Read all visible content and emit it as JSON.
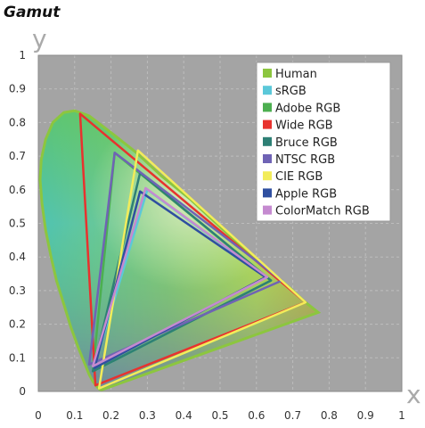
{
  "title": "Gamut",
  "chart_data": {
    "type": "line",
    "title": "Gamut",
    "xlabel": "x",
    "ylabel": "y",
    "xlim": [
      0,
      1
    ],
    "ylim": [
      0,
      1
    ],
    "xticks": [
      "0",
      "0.1",
      "0.2",
      "0.3",
      "0.4",
      "0.5",
      "0.6",
      "0.7",
      "0.8",
      "0.9",
      "1"
    ],
    "yticks": [
      "0",
      "0.1",
      "0.2",
      "0.3",
      "0.4",
      "0.5",
      "0.6",
      "0.7",
      "0.8",
      "0.9",
      "1"
    ],
    "grid": true,
    "legend_position": "top-right",
    "plot_background": "#a4a4a4",
    "locus": {
      "name": "Human",
      "color": "#8cc63f",
      "points": [
        [
          0.175,
          0.005
        ],
        [
          0.172,
          0.005
        ],
        [
          0.168,
          0.007
        ],
        [
          0.16,
          0.016
        ],
        [
          0.15,
          0.03
        ],
        [
          0.14,
          0.05
        ],
        [
          0.125,
          0.09
        ],
        [
          0.11,
          0.13
        ],
        [
          0.09,
          0.19
        ],
        [
          0.07,
          0.26
        ],
        [
          0.05,
          0.33
        ],
        [
          0.035,
          0.4
        ],
        [
          0.02,
          0.48
        ],
        [
          0.01,
          0.56
        ],
        [
          0.005,
          0.63
        ],
        [
          0.008,
          0.69
        ],
        [
          0.02,
          0.75
        ],
        [
          0.04,
          0.8
        ],
        [
          0.07,
          0.83
        ],
        [
          0.1,
          0.835
        ],
        [
          0.14,
          0.82
        ],
        [
          0.2,
          0.77
        ],
        [
          0.27,
          0.71
        ],
        [
          0.34,
          0.64
        ],
        [
          0.42,
          0.57
        ],
        [
          0.5,
          0.49
        ],
        [
          0.58,
          0.41
        ],
        [
          0.64,
          0.355
        ],
        [
          0.69,
          0.31
        ],
        [
          0.735,
          0.265
        ],
        [
          0.77,
          0.235
        ],
        [
          0.175,
          0.005
        ]
      ]
    },
    "series": [
      {
        "name": "Human",
        "color": "#8cc63f",
        "points": [
          [
            0.175,
            0.005
          ],
          [
            0.77,
            0.235
          ]
        ]
      },
      {
        "name": "sRGB",
        "color": "#5bc8d9",
        "points": [
          [
            0.64,
            0.33
          ],
          [
            0.3,
            0.6
          ],
          [
            0.15,
            0.06
          ]
        ]
      },
      {
        "name": "Adobe RGB",
        "color": "#4caf50",
        "points": [
          [
            0.64,
            0.33
          ],
          [
            0.21,
            0.71
          ],
          [
            0.15,
            0.06
          ]
        ]
      },
      {
        "name": "Wide RGB",
        "color": "#e8322e",
        "points": [
          [
            0.735,
            0.265
          ],
          [
            0.115,
            0.826
          ],
          [
            0.157,
            0.018
          ]
        ]
      },
      {
        "name": "Bruce RGB",
        "color": "#2e8075",
        "points": [
          [
            0.64,
            0.33
          ],
          [
            0.28,
            0.65
          ],
          [
            0.15,
            0.06
          ]
        ]
      },
      {
        "name": "NTSC RGB",
        "color": "#6f63b5",
        "points": [
          [
            0.67,
            0.33
          ],
          [
            0.21,
            0.71
          ],
          [
            0.14,
            0.08
          ]
        ]
      },
      {
        "name": "CIE RGB",
        "color": "#f2ec5a",
        "points": [
          [
            0.735,
            0.265
          ],
          [
            0.274,
            0.717
          ],
          [
            0.167,
            0.009
          ]
        ]
      },
      {
        "name": "Apple RGB",
        "color": "#2f4fa0",
        "points": [
          [
            0.625,
            0.34
          ],
          [
            0.28,
            0.595
          ],
          [
            0.155,
            0.07
          ]
        ]
      },
      {
        "name": "ColorMatch RGB",
        "color": "#c58ad0",
        "points": [
          [
            0.63,
            0.34
          ],
          [
            0.295,
            0.605
          ],
          [
            0.15,
            0.075
          ]
        ]
      }
    ]
  }
}
